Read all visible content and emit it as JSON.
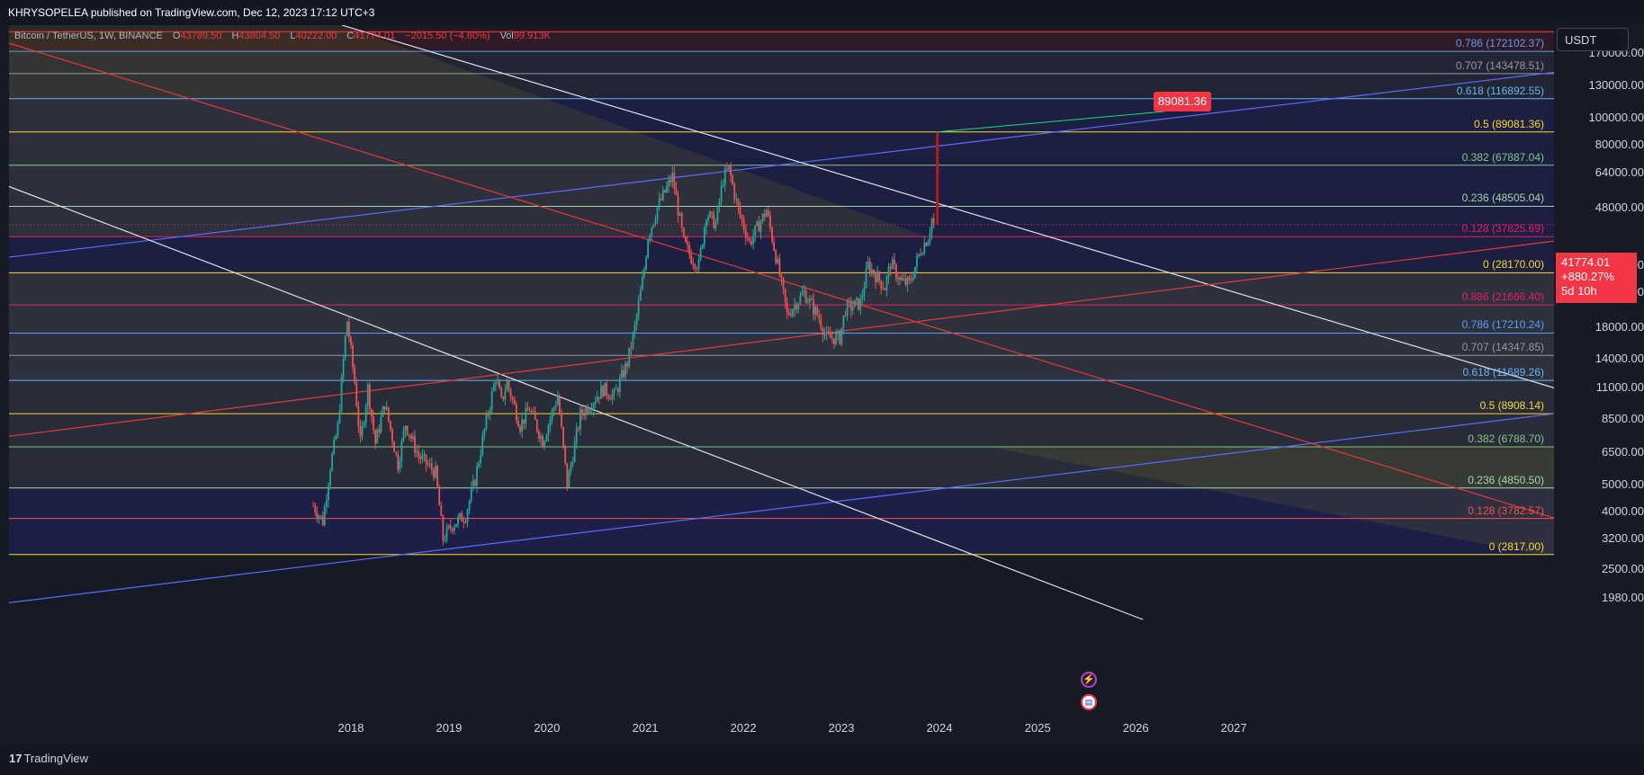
{
  "header": {
    "publisher": "KHRYSOPELEA published on TradingView.com, Dec 12, 2023 17:12 UTC+3",
    "symbol": "Bitcoin / TetherUS, 1W, BINANCE",
    "open_label": "O",
    "open": "43789.50",
    "high_label": "H",
    "high": "43804.50",
    "low_label": "L",
    "low": "40222.00",
    "close_label": "C",
    "close": "41774.01",
    "change": "−2015.50 (−4.60%)",
    "vol_label": "Vol",
    "vol": "99.913K"
  },
  "currency_button": "USDT",
  "last_price": {
    "price": "41774.01",
    "change": "+880.27%",
    "countdown": "5d 10h"
  },
  "callout_label": "89081.36",
  "branding": "TradingView",
  "colors": {
    "up": "#26a69a",
    "down": "#ef5350",
    "accent_red": "#f23645",
    "background": "#161a25"
  },
  "icons": [
    "lightning-event-icon",
    "us-flag-event-icon"
  ],
  "chart_data": {
    "type": "candlestick",
    "scale": "log",
    "y_ticks": [
      "170000.00",
      "130000.00",
      "100000.00",
      "80000.00",
      "64000.00",
      "48000.00",
      "30000.00",
      "24000.00",
      "18000.00",
      "14000.00",
      "11000.00",
      "8500.00",
      "6500.00",
      "5000.00",
      "4000.00",
      "3200.00",
      "2500.00",
      "1980.00"
    ],
    "x_ticks": [
      "2018",
      "2019",
      "2020",
      "2021",
      "2022",
      "2023",
      "2024",
      "2025",
      "2026",
      "2027"
    ],
    "ylim": [
      1700,
      205000
    ],
    "fib_upper": [
      {
        "label": "0.786 (172102.37)",
        "value": 172102.37,
        "color": "#5b9cf6"
      },
      {
        "label": "0.707 (143478.51)",
        "value": 143478.51,
        "color": "#9598a1"
      },
      {
        "label": "0.618 (116892.55)",
        "value": 116892.55,
        "color": "#64b5f6"
      },
      {
        "label": "0.5 (89081.36)",
        "value": 89081.36,
        "color": "#fdd835"
      },
      {
        "label": "0.382 (67887.04)",
        "value": 67887.04,
        "color": "#81c784"
      },
      {
        "label": "0.236 (48505.04)",
        "value": 48505.04,
        "color": "#a5d6a7"
      },
      {
        "label": "0.128 (37825.69)",
        "value": 37825.69,
        "color": "#e91e63"
      },
      {
        "label": "0 (28170.00)",
        "value": 28170.0,
        "color": "#fdd835"
      }
    ],
    "fib_lower": [
      {
        "label": "0.886 (21666.40)",
        "value": 21666.4,
        "color": "#e91e63"
      },
      {
        "label": "0.786 (17210.24)",
        "value": 17210.24,
        "color": "#5b9cf6"
      },
      {
        "label": "0.707 (14347.85)",
        "value": 14347.85,
        "color": "#9598a1"
      },
      {
        "label": "0.618 (11689.26)",
        "value": 11689.26,
        "color": "#64b5f6"
      },
      {
        "label": "0.5 (8908.14)",
        "value": 8908.14,
        "color": "#fdd835"
      },
      {
        "label": "0.382 (6788.70)",
        "value": 6788.7,
        "color": "#81c784"
      },
      {
        "label": "0.236 (4850.50)",
        "value": 4850.5,
        "color": "#a5d6a7"
      },
      {
        "label": "0.128 (3782.57)",
        "value": 3782.57,
        "color": "#ef5350"
      },
      {
        "label": "0 (2817.00)",
        "value": 2817.0,
        "color": "#fdd835"
      }
    ],
    "price_path": [
      [
        "2017-08-14",
        4200
      ],
      [
        "2017-09-18",
        3700
      ],
      [
        "2017-10-16",
        5800
      ],
      [
        "2017-11-13",
        8000
      ],
      [
        "2017-12-11",
        16500
      ],
      [
        "2017-12-18",
        19000
      ],
      [
        "2018-01-15",
        11500
      ],
      [
        "2018-02-05",
        7000
      ],
      [
        "2018-03-05",
        11000
      ],
      [
        "2018-04-02",
        7000
      ],
      [
        "2018-05-07",
        9700
      ],
      [
        "2018-06-25",
        5900
      ],
      [
        "2018-07-23",
        8200
      ],
      [
        "2018-09-10",
        6300
      ],
      [
        "2018-11-12",
        5500
      ],
      [
        "2018-12-10",
        3200
      ],
      [
        "2019-01-14",
        3600
      ],
      [
        "2019-03-04",
        3900
      ],
      [
        "2019-04-08",
        5200
      ],
      [
        "2019-05-13",
        7800
      ],
      [
        "2019-06-24",
        12000
      ],
      [
        "2019-07-15",
        9800
      ],
      [
        "2019-08-05",
        11500
      ],
      [
        "2019-09-23",
        8100
      ],
      [
        "2019-10-28",
        9300
      ],
      [
        "2019-12-16",
        7100
      ],
      [
        "2020-02-10",
        10300
      ],
      [
        "2020-03-16",
        5000
      ],
      [
        "2020-05-04",
        8800
      ],
      [
        "2020-07-27",
        10900
      ],
      [
        "2020-09-07",
        10300
      ],
      [
        "2020-10-26",
        13500
      ],
      [
        "2020-11-23",
        18000
      ],
      [
        "2020-12-28",
        29000
      ],
      [
        "2021-01-11",
        38000
      ],
      [
        "2021-02-15",
        48000
      ],
      [
        "2021-04-12",
        62000
      ],
      [
        "2021-05-24",
        36000
      ],
      [
        "2021-06-21",
        32000
      ],
      [
        "2021-07-19",
        30000
      ],
      [
        "2021-08-16",
        46000
      ],
      [
        "2021-09-20",
        42000
      ],
      [
        "2021-10-18",
        61000
      ],
      [
        "2021-11-08",
        66000
      ],
      [
        "2021-12-13",
        47000
      ],
      [
        "2022-01-24",
        36000
      ],
      [
        "2022-03-28",
        47000
      ],
      [
        "2022-05-09",
        30000
      ],
      [
        "2022-06-13",
        20000
      ],
      [
        "2022-08-15",
        24000
      ],
      [
        "2022-10-10",
        19500
      ],
      [
        "2022-11-07",
        16500
      ],
      [
        "2022-12-26",
        16600
      ],
      [
        "2023-01-16",
        21000
      ],
      [
        "2023-03-13",
        22000
      ],
      [
        "2023-04-10",
        30000
      ],
      [
        "2023-06-12",
        25000
      ],
      [
        "2023-07-03",
        30500
      ],
      [
        "2023-08-14",
        26000
      ],
      [
        "2023-09-11",
        25800
      ],
      [
        "2023-10-23",
        34000
      ],
      [
        "2023-11-20",
        37800
      ],
      [
        "2023-12-04",
        43800
      ],
      [
        "2023-12-11",
        41774
      ]
    ],
    "projection": {
      "from": 41774.01,
      "to": 89081.36,
      "label": "89081.36"
    }
  }
}
